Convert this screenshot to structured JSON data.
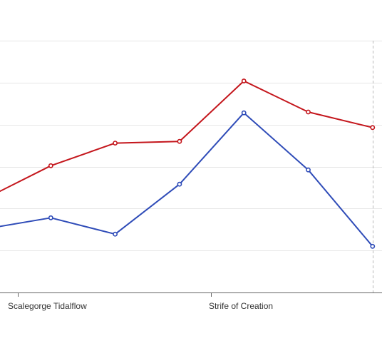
{
  "chart_data": {
    "type": "line",
    "title": "",
    "xlabel": "",
    "ylabel": "",
    "categories": [
      "",
      "Scalegorge Tidalflow",
      "",
      "",
      "Strife of Creation",
      "",
      ""
    ],
    "visible_tick_labels": [
      "Scalegorge Tidalflow",
      "Strife of Creation"
    ],
    "ylim": [
      0,
      60
    ],
    "grid": true,
    "legend": "none",
    "series": [
      {
        "color": "#c4161c",
        "values": [
          22.5,
          30.2,
          35.6,
          36.0,
          50.4,
          43.0,
          39.3
        ]
      },
      {
        "color": "#2f4cb8",
        "values": [
          15.2,
          17.8,
          13.9,
          25.8,
          42.8,
          29.2,
          11.0
        ]
      }
    ]
  }
}
